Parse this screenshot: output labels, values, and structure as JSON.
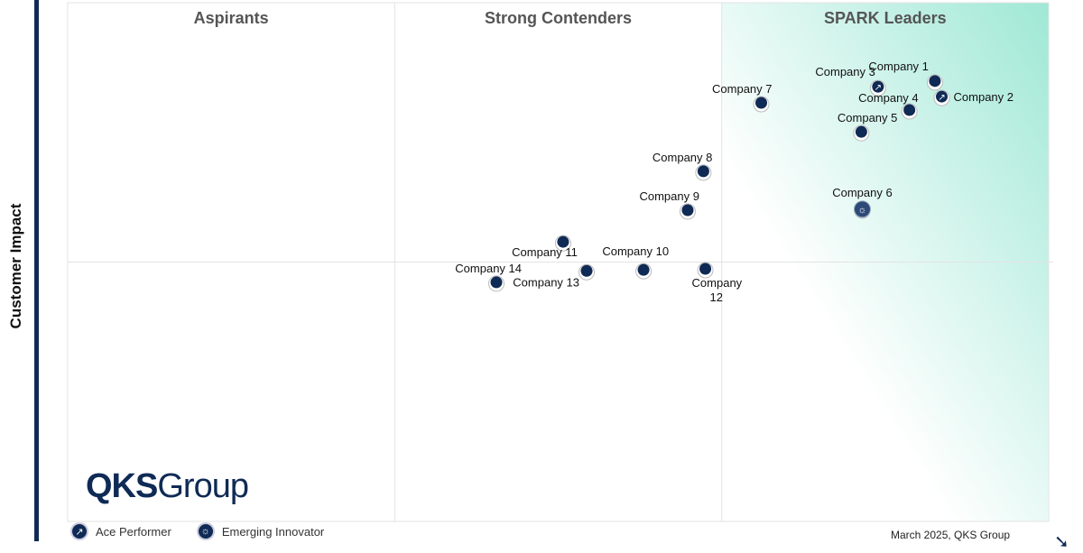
{
  "chart_data": {
    "type": "scatter",
    "title": "",
    "ylabel": "Customer Impact",
    "xlim": [
      0,
      100
    ],
    "ylim": [
      0,
      100
    ],
    "grid": true,
    "quadrants": [
      "Aspirants",
      "Strong Contenders",
      "SPARK Leaders"
    ],
    "points": [
      {
        "name": "Company 1",
        "x": 88.4,
        "y": 84.9,
        "badge": ""
      },
      {
        "name": "Company 2",
        "x": 89.1,
        "y": 81.9,
        "badge": "Ace Performer"
      },
      {
        "name": "Company 3",
        "x": 82.6,
        "y": 83.8,
        "badge": "Ace Performer"
      },
      {
        "name": "Company 4",
        "x": 85.8,
        "y": 79.3,
        "badge": ""
      },
      {
        "name": "Company 5",
        "x": 80.9,
        "y": 75.1,
        "badge": ""
      },
      {
        "name": "Company 6",
        "x": 81.0,
        "y": 60.2,
        "badge": "Emerging Innovator"
      },
      {
        "name": "Company  7",
        "x": 70.7,
        "y": 80.7,
        "badge": ""
      },
      {
        "name": "Company 8",
        "x": 64.8,
        "y": 67.5,
        "badge": ""
      },
      {
        "name": "Company 9",
        "x": 63.2,
        "y": 60.0,
        "badge": ""
      },
      {
        "name": "Company 10",
        "x": 58.7,
        "y": 48.5,
        "badge": ""
      },
      {
        "name": "Company 11",
        "x": 50.5,
        "y": 53.9,
        "badge": ""
      },
      {
        "name": "Company 12",
        "x": 65.0,
        "y": 48.7,
        "badge": ""
      },
      {
        "name": "Company 13",
        "x": 52.9,
        "y": 48.3,
        "badge": ""
      },
      {
        "name": "Company 14",
        "x": 43.7,
        "y": 46.1,
        "badge": ""
      }
    ],
    "legend": [
      {
        "label": "Ace Performer",
        "icon": "trend-up-icon"
      },
      {
        "label": "Emerging Innovator",
        "icon": "lightbulb-icon"
      }
    ],
    "colors": {
      "point": "#0f2a55",
      "leader_gradient": "#9fe8d5"
    }
  },
  "logo": {
    "bold": "QKS",
    "light": "Group"
  },
  "credit": "March 2025, QKS Group"
}
